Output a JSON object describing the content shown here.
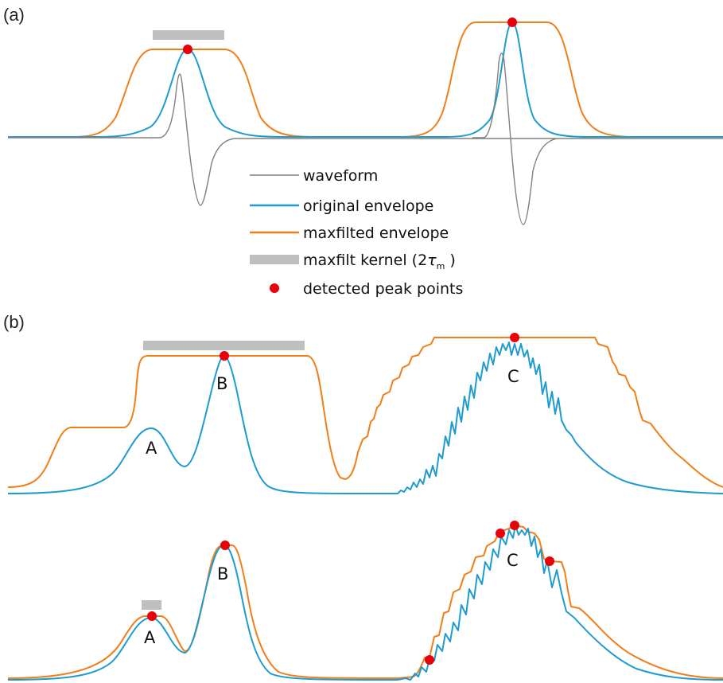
{
  "panels": {
    "a": {
      "label": "(a)"
    },
    "b": {
      "label": "(b)"
    }
  },
  "legend": {
    "items": [
      {
        "key": "waveform",
        "text": "waveform",
        "color": "#808080"
      },
      {
        "key": "original",
        "text": "original envelope",
        "color": "#1f9bd0"
      },
      {
        "key": "maxfilted",
        "text": "maxfilted envelope",
        "color": "#ef7f1a"
      },
      {
        "key": "kernel",
        "text_prefix": "maxfilt kernel (2",
        "text_symbol": "τ",
        "text_subscript": "m",
        "text_suffix": " )",
        "color": "#bfbfbf"
      },
      {
        "key": "peaks",
        "text": "detected peak points",
        "color": "#e8000b"
      }
    ]
  },
  "peak_labels": {
    "upper": {
      "A": "A",
      "B": "B",
      "C": "C"
    },
    "lower": {
      "A": "A",
      "B": "B",
      "C": "C"
    }
  },
  "colors": {
    "waveform": "#808080",
    "original_envelope": "#1f9bd0",
    "maxfilted_envelope": "#ef7f1a",
    "kernel": "#bfbfbf",
    "peak": "#e8000b"
  }
}
